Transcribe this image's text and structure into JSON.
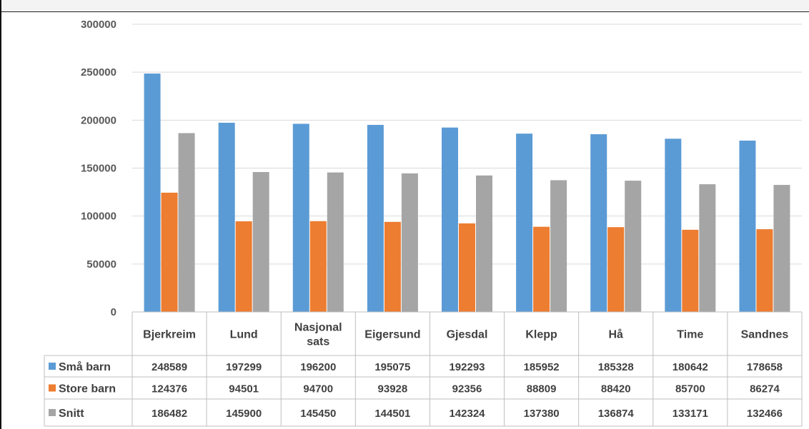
{
  "chart_data": {
    "type": "bar",
    "categories": [
      "Bjerkreim",
      "Lund",
      "Nasjonal sats",
      "Eigersund",
      "Gjesdal",
      "Klepp",
      "Hå",
      "Time",
      "Sandnes"
    ],
    "category_lines": [
      [
        "Bjerkreim"
      ],
      [
        "Lund"
      ],
      [
        "Nasjonal",
        "sats"
      ],
      [
        "Eigersund"
      ],
      [
        "Gjesdal"
      ],
      [
        "Klepp"
      ],
      [
        "Hå"
      ],
      [
        "Time"
      ],
      [
        "Sandnes"
      ]
    ],
    "series": [
      {
        "name": "Små barn",
        "color": "#5b9bd5",
        "values": [
          248589,
          197299,
          196200,
          195075,
          192293,
          185952,
          185328,
          180642,
          178658
        ]
      },
      {
        "name": "Store barn",
        "color": "#ed7d31",
        "values": [
          124376,
          94501,
          94700,
          93928,
          92356,
          88809,
          88420,
          85700,
          86274
        ]
      },
      {
        "name": "Snitt",
        "color": "#a5a5a5",
        "values": [
          186482,
          145900,
          145450,
          144501,
          142324,
          137380,
          136874,
          133171,
          132466
        ]
      }
    ],
    "ylim": [
      0,
      300000
    ],
    "yticks": [
      0,
      50000,
      100000,
      150000,
      200000,
      250000,
      300000
    ],
    "grid": true,
    "legend": "data-table",
    "title": "",
    "xlabel": "",
    "ylabel": ""
  }
}
